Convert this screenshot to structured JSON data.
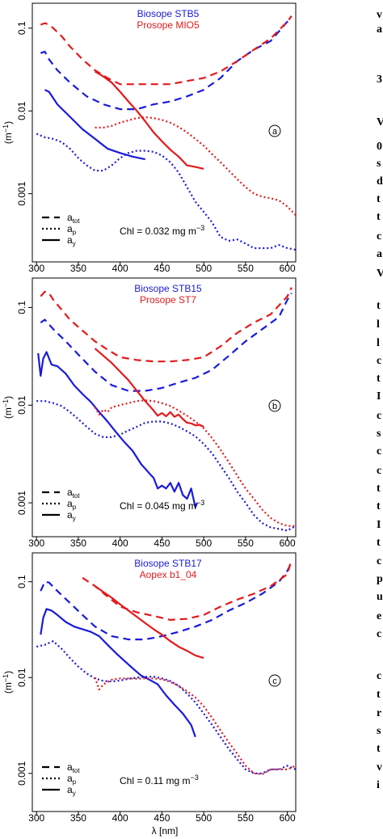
{
  "colors": {
    "biosope": "#1a1adb",
    "prosope": "#e31a1c",
    "axis": "#000000"
  },
  "xaxis_label": "λ [nm]",
  "chart_data": [
    {
      "type": "line",
      "panel_label": "a",
      "legend_top": [
        "Biosope STB5",
        "Prosope MIO5"
      ],
      "legend_styles": [
        "a_tot",
        "a_p",
        "a_y"
      ],
      "chl_text": "Chl = 0.032 mg  m",
      "chl_exp": "−3",
      "ylabel": "(m",
      "ylabel_exp": "−1",
      "ylabel_close": ")",
      "yscale": "log",
      "xlim": [
        295,
        610
      ],
      "ylim": [
        0.00015,
        0.2
      ],
      "xticks": [
        300,
        350,
        400,
        450,
        500,
        550,
        600
      ],
      "yticks": [
        {
          "v": 0.001,
          "label": "0.001"
        },
        {
          "v": 0.01,
          "label": "0.01"
        },
        {
          "v": 0.1,
          "label": "0.1"
        }
      ],
      "series": [
        {
          "group": "biosope",
          "kind": "a_tot",
          "x": [
            305,
            310,
            315,
            325,
            340,
            360,
            380,
            400,
            420,
            440,
            460,
            480,
            500,
            520,
            540,
            560,
            580,
            600,
            605
          ],
          "y": [
            0.05,
            0.052,
            0.042,
            0.031,
            0.022,
            0.015,
            0.012,
            0.0105,
            0.0105,
            0.012,
            0.013,
            0.015,
            0.018,
            0.025,
            0.04,
            0.055,
            0.07,
            0.12,
            0.14
          ]
        },
        {
          "group": "biosope",
          "kind": "a_p",
          "x": [
            300,
            310,
            320,
            330,
            340,
            350,
            360,
            370,
            380,
            390,
            400,
            410,
            420,
            430,
            440,
            450,
            460,
            470,
            480,
            490,
            500,
            510,
            520,
            530,
            540,
            550,
            560,
            570,
            580,
            590,
            600,
            610
          ],
          "y": [
            0.0053,
            0.0048,
            0.0046,
            0.0042,
            0.0035,
            0.0027,
            0.0022,
            0.0019,
            0.0019,
            0.0022,
            0.0027,
            0.0031,
            0.0033,
            0.0033,
            0.0032,
            0.0029,
            0.0024,
            0.0018,
            0.0012,
            0.0008,
            0.0006,
            0.00045,
            0.0003,
            0.00027,
            0.00028,
            0.00025,
            0.00022,
            0.00022,
            0.00022,
            0.00024,
            0.00022,
            0.00021
          ]
        },
        {
          "group": "biosope",
          "kind": "a_y",
          "x": [
            310,
            315,
            325,
            340,
            355,
            370,
            385,
            400,
            415,
            430
          ],
          "y": [
            0.018,
            0.017,
            0.012,
            0.0085,
            0.006,
            0.0046,
            0.0035,
            0.0031,
            0.0028,
            0.0026
          ]
        },
        {
          "group": "prosope",
          "kind": "a_tot",
          "x": [
            305,
            310,
            315,
            320,
            330,
            340,
            355,
            370,
            385,
            400,
            420,
            440,
            460,
            480,
            500,
            520,
            540,
            560,
            580,
            600,
            605
          ],
          "y": [
            0.11,
            0.115,
            0.11,
            0.1,
            0.08,
            0.06,
            0.042,
            0.031,
            0.025,
            0.021,
            0.021,
            0.021,
            0.021,
            0.023,
            0.025,
            0.03,
            0.04,
            0.055,
            0.075,
            0.12,
            0.14
          ]
        },
        {
          "group": "prosope",
          "kind": "a_p",
          "x": [
            370,
            380,
            390,
            400,
            410,
            420,
            430,
            440,
            450,
            460,
            470,
            480,
            490,
            500,
            510,
            520,
            530,
            540,
            550,
            560,
            570,
            580,
            590,
            600,
            610
          ],
          "y": [
            0.0063,
            0.0063,
            0.0066,
            0.0072,
            0.0077,
            0.0082,
            0.0084,
            0.0082,
            0.0078,
            0.0072,
            0.0064,
            0.0055,
            0.0046,
            0.0038,
            0.003,
            0.0024,
            0.0019,
            0.0015,
            0.0012,
            0.001,
            0.00092,
            0.00088,
            0.00083,
            0.0007,
            0.00055
          ]
        },
        {
          "group": "prosope",
          "kind": "a_y",
          "x": [
            370,
            380,
            390,
            400,
            410,
            420,
            430,
            440,
            450,
            460,
            470,
            480,
            490,
            500
          ],
          "y": [
            0.03,
            0.026,
            0.022,
            0.017,
            0.013,
            0.01,
            0.0075,
            0.0055,
            0.0043,
            0.0034,
            0.0028,
            0.0022,
            0.0021,
            0.002
          ]
        }
      ]
    },
    {
      "type": "line",
      "panel_label": "b",
      "legend_top": [
        "Biosope STB15",
        "Prosope ST7"
      ],
      "legend_styles": [
        "a_tot",
        "a_p",
        "a_y"
      ],
      "chl_text": "Chl = 0.045 mg  m",
      "chl_exp": "−3",
      "ylabel": "(m",
      "ylabel_exp": "−1",
      "ylabel_close": ")",
      "yscale": "log",
      "xlim": [
        295,
        610
      ],
      "ylim": [
        0.00045,
        0.2
      ],
      "xticks": [
        300,
        350,
        400,
        450,
        500,
        550,
        600
      ],
      "yticks": [
        {
          "v": 0.001,
          "label": "0.001"
        },
        {
          "v": 0.01,
          "label": "0.01"
        },
        {
          "v": 0.1,
          "label": "0.1"
        }
      ],
      "series": [
        {
          "group": "biosope",
          "kind": "a_tot",
          "x": [
            305,
            310,
            320,
            335,
            350,
            370,
            390,
            410,
            430,
            450,
            470,
            490,
            510,
            530,
            550,
            570,
            590,
            600,
            605
          ],
          "y": [
            0.07,
            0.075,
            0.06,
            0.045,
            0.033,
            0.022,
            0.016,
            0.014,
            0.014,
            0.015,
            0.017,
            0.019,
            0.023,
            0.032,
            0.045,
            0.06,
            0.08,
            0.12,
            0.14
          ]
        },
        {
          "group": "biosope",
          "kind": "a_p",
          "x": [
            300,
            310,
            320,
            330,
            340,
            350,
            360,
            370,
            380,
            390,
            400,
            410,
            420,
            430,
            440,
            450,
            460,
            470,
            480,
            490,
            500,
            510,
            520,
            530,
            540,
            550,
            560,
            570,
            580,
            590,
            600,
            610
          ],
          "y": [
            0.011,
            0.011,
            0.0105,
            0.0098,
            0.0085,
            0.0072,
            0.006,
            0.0051,
            0.0047,
            0.0047,
            0.005,
            0.0055,
            0.006,
            0.0066,
            0.0068,
            0.0068,
            0.0065,
            0.006,
            0.0054,
            0.0048,
            0.004,
            0.0032,
            0.0024,
            0.0018,
            0.0013,
            0.001,
            0.00075,
            0.00062,
            0.00056,
            0.00054,
            0.00052,
            0.00058
          ]
        },
        {
          "group": "biosope",
          "kind": "a_y",
          "x": [
            302,
            305,
            308,
            312,
            318,
            325,
            335,
            345,
            355,
            365,
            375,
            385,
            395,
            405,
            415,
            425,
            435,
            440,
            445,
            450,
            455,
            460,
            465,
            470,
            475,
            480,
            485,
            490,
            492
          ],
          "y": [
            0.034,
            0.02,
            0.03,
            0.035,
            0.026,
            0.025,
            0.021,
            0.016,
            0.013,
            0.0108,
            0.0085,
            0.0068,
            0.0053,
            0.0042,
            0.0034,
            0.0025,
            0.002,
            0.0018,
            0.0014,
            0.0015,
            0.0014,
            0.0016,
            0.0013,
            0.0016,
            0.0012,
            0.0011,
            0.0014,
            0.0009,
            0.001
          ]
        },
        {
          "group": "prosope",
          "kind": "a_tot",
          "x": [
            305,
            310,
            315,
            320,
            330,
            340,
            355,
            370,
            385,
            400,
            420,
            440,
            460,
            480,
            500,
            520,
            540,
            560,
            580,
            600,
            605
          ],
          "y": [
            0.13,
            0.145,
            0.14,
            0.12,
            0.095,
            0.075,
            0.058,
            0.045,
            0.037,
            0.031,
            0.029,
            0.028,
            0.028,
            0.029,
            0.031,
            0.04,
            0.055,
            0.07,
            0.085,
            0.13,
            0.16
          ]
        },
        {
          "group": "prosope",
          "kind": "a_p",
          "x": [
            370,
            375,
            380,
            385,
            390,
            400,
            410,
            420,
            430,
            440,
            450,
            460,
            470,
            480,
            490,
            500,
            510,
            520,
            530,
            540,
            550,
            560,
            570,
            580,
            590,
            600,
            610
          ],
          "y": [
            0.0095,
            0.008,
            0.009,
            0.0085,
            0.0095,
            0.01,
            0.0105,
            0.011,
            0.0112,
            0.011,
            0.0105,
            0.0098,
            0.0088,
            0.0078,
            0.0068,
            0.0058,
            0.0046,
            0.0035,
            0.0026,
            0.0019,
            0.0014,
            0.0011,
            0.00085,
            0.0007,
            0.00062,
            0.00058,
            0.00058
          ]
        },
        {
          "group": "prosope",
          "kind": "a_y",
          "x": [
            370,
            380,
            390,
            400,
            410,
            420,
            430,
            440,
            445,
            450,
            455,
            460,
            465,
            470,
            475,
            480,
            485,
            490,
            495,
            500
          ],
          "y": [
            0.038,
            0.032,
            0.027,
            0.022,
            0.018,
            0.014,
            0.011,
            0.0088,
            0.0078,
            0.0083,
            0.0077,
            0.0085,
            0.0076,
            0.008,
            0.0072,
            0.0066,
            0.0065,
            0.0062,
            0.0063,
            0.006
          ]
        }
      ]
    },
    {
      "type": "line",
      "panel_label": "c",
      "legend_top": [
        "Biosope STB17",
        "Aopex b1_04"
      ],
      "legend_styles": [
        "a_tot",
        "a_p",
        "a_y"
      ],
      "chl_text": "Chl = 0.11 mg  m",
      "chl_exp": "−3",
      "ylabel": "(m",
      "ylabel_exp": "−1",
      "ylabel_close": ")",
      "yscale": "log",
      "xlim": [
        295,
        610
      ],
      "ylim": [
        0.0004,
        0.2
      ],
      "xticks": [
        300,
        350,
        400,
        450,
        500,
        550,
        600
      ],
      "yticks": [
        {
          "v": 0.001,
          "label": "0.001"
        },
        {
          "v": 0.01,
          "label": "0.01"
        },
        {
          "v": 0.1,
          "label": "0.1"
        }
      ],
      "series": [
        {
          "group": "biosope",
          "kind": "a_tot",
          "x": [
            305,
            310,
            315,
            325,
            340,
            355,
            370,
            390,
            410,
            430,
            450,
            470,
            490,
            510,
            530,
            550,
            570,
            590,
            600,
            605
          ],
          "y": [
            0.08,
            0.1,
            0.098,
            0.08,
            0.06,
            0.045,
            0.034,
            0.027,
            0.025,
            0.025,
            0.027,
            0.03,
            0.034,
            0.04,
            0.05,
            0.06,
            0.075,
            0.1,
            0.13,
            0.16
          ]
        },
        {
          "group": "biosope",
          "kind": "a_p",
          "x": [
            300,
            310,
            320,
            330,
            340,
            350,
            360,
            370,
            380,
            390,
            400,
            410,
            420,
            430,
            440,
            450,
            460,
            470,
            480,
            490,
            500,
            510,
            520,
            530,
            540,
            550,
            560,
            570,
            580,
            590,
            600,
            610
          ],
          "y": [
            0.021,
            0.022,
            0.024,
            0.02,
            0.016,
            0.013,
            0.011,
            0.0098,
            0.0092,
            0.0091,
            0.0093,
            0.0097,
            0.01,
            0.0102,
            0.0102,
            0.0098,
            0.0092,
            0.0082,
            0.0068,
            0.0055,
            0.0042,
            0.0032,
            0.0024,
            0.0018,
            0.0014,
            0.0011,
            0.001,
            0.001,
            0.0011,
            0.0011,
            0.0012,
            0.0011
          ]
        },
        {
          "group": "biosope",
          "kind": "a_y",
          "x": [
            305,
            308,
            312,
            318,
            325,
            335,
            345,
            355,
            365,
            375,
            385,
            395,
            405,
            415,
            425,
            435,
            445,
            455,
            465,
            475,
            485,
            490
          ],
          "y": [
            0.028,
            0.042,
            0.052,
            0.05,
            0.045,
            0.038,
            0.034,
            0.032,
            0.03,
            0.027,
            0.022,
            0.018,
            0.015,
            0.0125,
            0.0105,
            0.0095,
            0.0085,
            0.0065,
            0.0052,
            0.0042,
            0.0032,
            0.0024
          ]
        },
        {
          "group": "prosope",
          "kind": "a_tot",
          "x": [
            355,
            370,
            385,
            400,
            420,
            440,
            460,
            480,
            500,
            520,
            540,
            560,
            580,
            600,
            605
          ],
          "y": [
            0.11,
            0.09,
            0.07,
            0.055,
            0.048,
            0.044,
            0.04,
            0.041,
            0.045,
            0.055,
            0.065,
            0.075,
            0.09,
            0.12,
            0.17
          ]
        },
        {
          "group": "prosope",
          "kind": "a_p",
          "x": [
            370,
            375,
            380,
            390,
            400,
            410,
            420,
            430,
            440,
            450,
            460,
            470,
            480,
            490,
            500,
            510,
            520,
            530,
            540,
            550,
            560,
            570,
            580,
            590,
            600,
            610
          ],
          "y": [
            0.01,
            0.0075,
            0.0085,
            0.0095,
            0.0098,
            0.0098,
            0.0097,
            0.0098,
            0.0098,
            0.0096,
            0.009,
            0.0082,
            0.0072,
            0.0062,
            0.005,
            0.0038,
            0.0028,
            0.0021,
            0.0016,
            0.0012,
            0.001,
            0.00098,
            0.0011,
            0.0011,
            0.0011,
            0.0012
          ]
        },
        {
          "group": "prosope",
          "kind": "a_y",
          "x": [
            370,
            380,
            390,
            400,
            410,
            420,
            430,
            440,
            450,
            460,
            470,
            480,
            490,
            500
          ],
          "y": [
            0.09,
            0.078,
            0.068,
            0.058,
            0.05,
            0.043,
            0.037,
            0.032,
            0.028,
            0.024,
            0.021,
            0.019,
            0.017,
            0.016
          ]
        }
      ]
    }
  ]
}
